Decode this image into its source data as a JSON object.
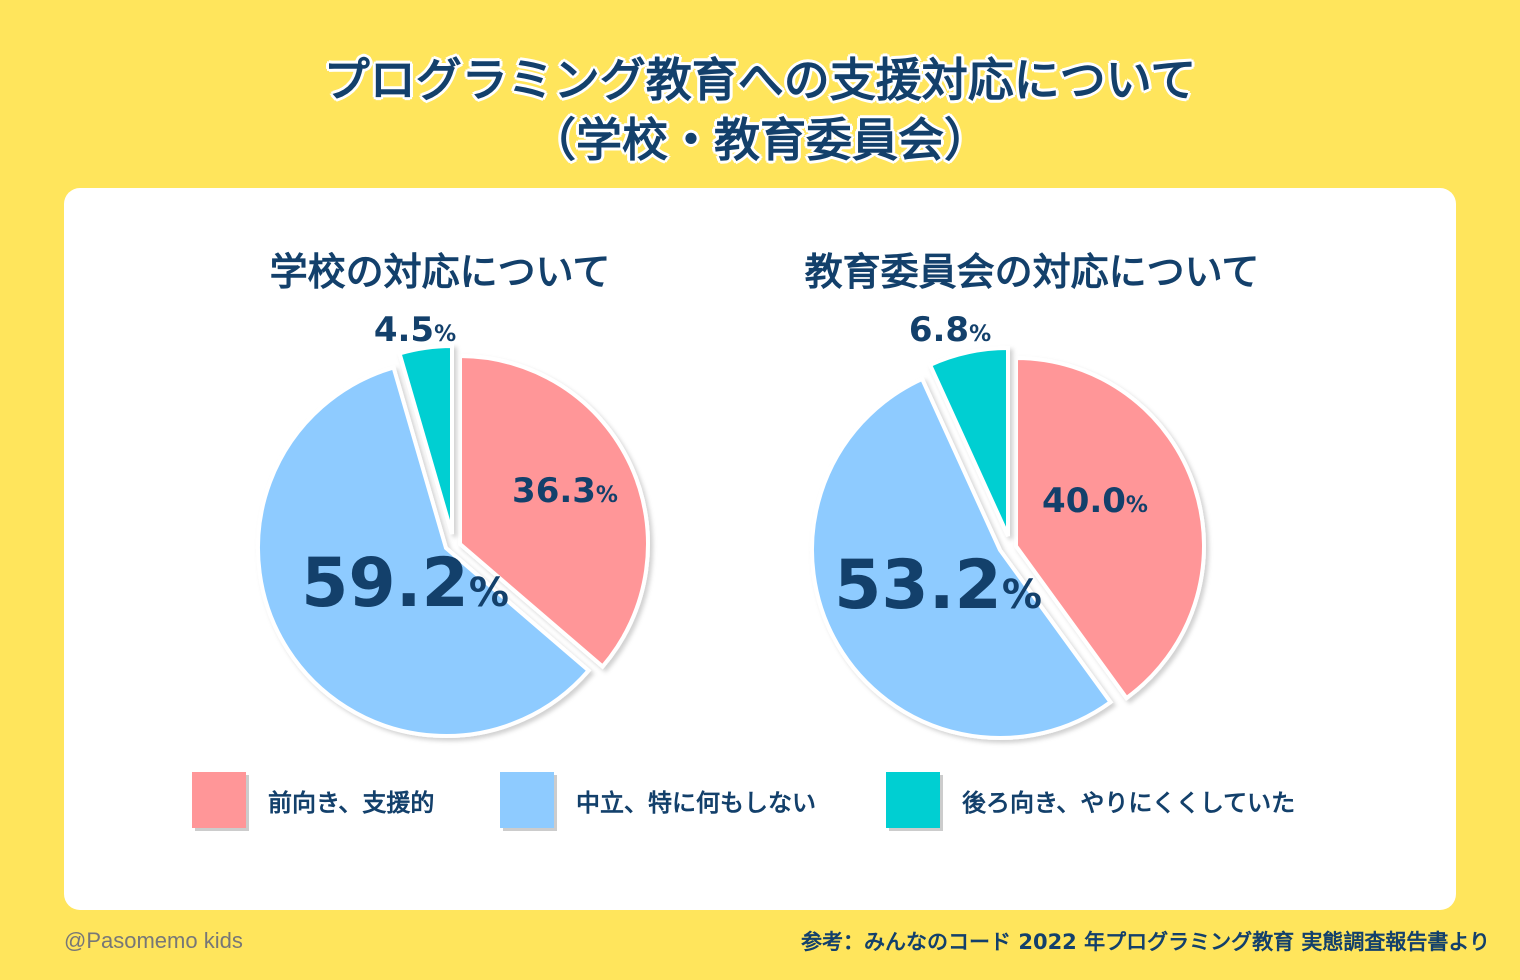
{
  "title": {
    "line1": "プログラミング教育への支援対応について",
    "line2": "（学校・教育委員会）"
  },
  "colors": {
    "background": "#FFE55C",
    "text": "#13406B",
    "positive": "#FF9698",
    "neutral": "#8ECBFF",
    "negative": "#00CFD2"
  },
  "chart_data": [
    {
      "type": "pie",
      "title": "学校の対応について",
      "categories": [
        "前向き、支援的",
        "中立、特に何もしない",
        "後ろ向き、やりにくくしていた"
      ],
      "values": [
        36.3,
        59.2,
        4.5
      ],
      "labels": [
        "36.3",
        "59.2",
        "4.5"
      ],
      "unit": "%"
    },
    {
      "type": "pie",
      "title": "教育委員会の対応について",
      "categories": [
        "前向き、支援的",
        "中立、特に何もしない",
        "後ろ向き、やりにくくしていた"
      ],
      "values": [
        40.0,
        53.2,
        6.8
      ],
      "labels": [
        "40.0",
        "53.2",
        "6.8"
      ],
      "unit": "%"
    }
  ],
  "legend": [
    {
      "label": "前向き、支援的",
      "color": "#FF9698"
    },
    {
      "label": "中立、特に何もしない",
      "color": "#8ECBFF"
    },
    {
      "label": "後ろ向き、やりにくくしていた",
      "color": "#00CFD2"
    }
  ],
  "credit": "@Pasomemo kids",
  "source": "参考：みんなのコード 2022 年プログラミング教育 実態調査報告書より"
}
